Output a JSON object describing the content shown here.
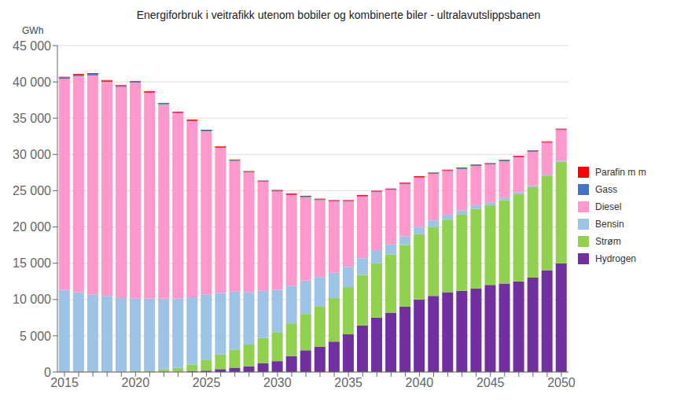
{
  "chart_data": {
    "type": "bar",
    "stacked": true,
    "title": "Energiforbruk i veitrafikk utenom bobiler og kombinerte biler - ultralavutslippsbanen",
    "y_label": "GWh",
    "categories": [
      "2015",
      null,
      null,
      null,
      null,
      "2020",
      null,
      null,
      null,
      null,
      "2025",
      null,
      null,
      null,
      null,
      "2030",
      null,
      null,
      null,
      null,
      "2035",
      null,
      null,
      null,
      null,
      "2040",
      null,
      null,
      null,
      null,
      "2045",
      null,
      null,
      null,
      null,
      "2050"
    ],
    "series": [
      {
        "name": "Hydrogen",
        "color": "#7030A0",
        "values": [
          0,
          0,
          0,
          0,
          0,
          0,
          0,
          0,
          0,
          100,
          200,
          400,
          600,
          800,
          1200,
          1500,
          2200,
          3000,
          3500,
          4200,
          5200,
          6400,
          7500,
          8200,
          9000,
          10000,
          10500,
          11000,
          11200,
          11500,
          12000,
          12200,
          12500,
          13000,
          14000,
          15000
        ]
      },
      {
        "name": "Strøm",
        "color": "#92D050",
        "values": [
          0,
          0,
          0,
          0,
          0,
          100,
          200,
          400,
          600,
          900,
          1500,
          2000,
          2500,
          3000,
          3500,
          4000,
          4500,
          5000,
          5500,
          6000,
          6500,
          7000,
          7500,
          8000,
          8500,
          9000,
          9500,
          10000,
          10500,
          11000,
          11000,
          11500,
          12000,
          12500,
          13000,
          14000
        ]
      },
      {
        "name": "Bensin",
        "color": "#9DC3E6",
        "values": [
          11300,
          11000,
          10700,
          10500,
          10200,
          10000,
          9900,
          9700,
          9500,
          9300,
          9000,
          8500,
          8000,
          7200,
          6500,
          5800,
          5200,
          4600,
          4100,
          3500,
          2800,
          2300,
          1800,
          1400,
          1200,
          1000,
          900,
          700,
          600,
          500,
          400,
          350,
          300,
          250,
          200,
          150
        ]
      },
      {
        "name": "Diesel",
        "color": "#FF99CC",
        "values": [
          29100,
          29800,
          30200,
          29500,
          29100,
          29800,
          28400,
          26800,
          25600,
          24300,
          22500,
          20000,
          18000,
          16500,
          15000,
          13600,
          12500,
          11500,
          10600,
          9800,
          9000,
          8500,
          8000,
          7500,
          7200,
          6800,
          6400,
          6000,
          5700,
          5400,
          5200,
          5000,
          4800,
          4600,
          4400,
          4200
        ]
      },
      {
        "name": "Gass",
        "color": "#4472C4",
        "values": [
          200,
          200,
          200,
          150,
          150,
          100,
          100,
          100,
          100,
          100,
          100,
          100,
          100,
          100,
          100,
          100,
          100,
          100,
          100,
          100,
          100,
          100,
          100,
          100,
          100,
          100,
          100,
          100,
          100,
          100,
          100,
          100,
          100,
          100,
          100,
          100
        ]
      },
      {
        "name": "Parafin m m",
        "color": "#FF0000",
        "values": [
          100,
          100,
          100,
          100,
          100,
          100,
          100,
          100,
          100,
          100,
          100,
          100,
          100,
          100,
          100,
          100,
          100,
          100,
          100,
          100,
          100,
          100,
          100,
          100,
          100,
          100,
          100,
          100,
          100,
          100,
          100,
          100,
          100,
          100,
          100,
          100
        ]
      }
    ],
    "ylim": [
      0,
      45000
    ],
    "yticks": [
      0,
      {
        "value": 5000,
        "label": "5 000"
      },
      {
        "value": 10000,
        "label": "10 000"
      },
      {
        "value": 15000,
        "label": "15 000"
      },
      {
        "value": 20000,
        "label": "20 000"
      },
      {
        "value": 25000,
        "label": "25 000"
      },
      {
        "value": 30000,
        "label": "30 000"
      },
      {
        "value": 35000,
        "label": "35 000"
      },
      {
        "value": 40000,
        "label": "40 000"
      },
      {
        "value": 45000,
        "label": "45 000"
      }
    ],
    "grid": true,
    "legend": "right"
  }
}
